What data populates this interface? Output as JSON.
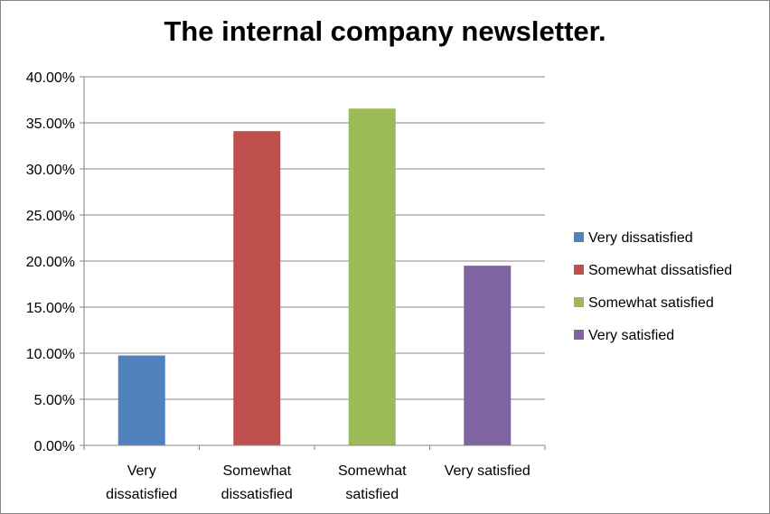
{
  "chart_data": {
    "type": "bar",
    "title": "The internal company newsletter.",
    "categories": [
      [
        "Very",
        "dissatisfied"
      ],
      [
        "Somewhat",
        "dissatisfied"
      ],
      [
        "Somewhat",
        "satisfied"
      ],
      [
        "Very satisfied"
      ]
    ],
    "values": [
      0.0975,
      0.341,
      0.3655,
      0.195
    ],
    "colors": [
      "#4F81BD",
      "#C0504D",
      "#9BBB59",
      "#8064A2"
    ],
    "legend": [
      "Very dissatisfied",
      "Somewhat dissatisfied",
      "Somewhat satisfied",
      "Very satisfied"
    ],
    "legend_position": "right",
    "ylim": [
      0,
      0.4
    ],
    "yticks": [
      "0.00%",
      "5.00%",
      "10.00%",
      "15.00%",
      "20.00%",
      "25.00%",
      "30.00%",
      "35.00%",
      "40.00%"
    ],
    "grid": true,
    "xlabel": "",
    "ylabel": ""
  }
}
